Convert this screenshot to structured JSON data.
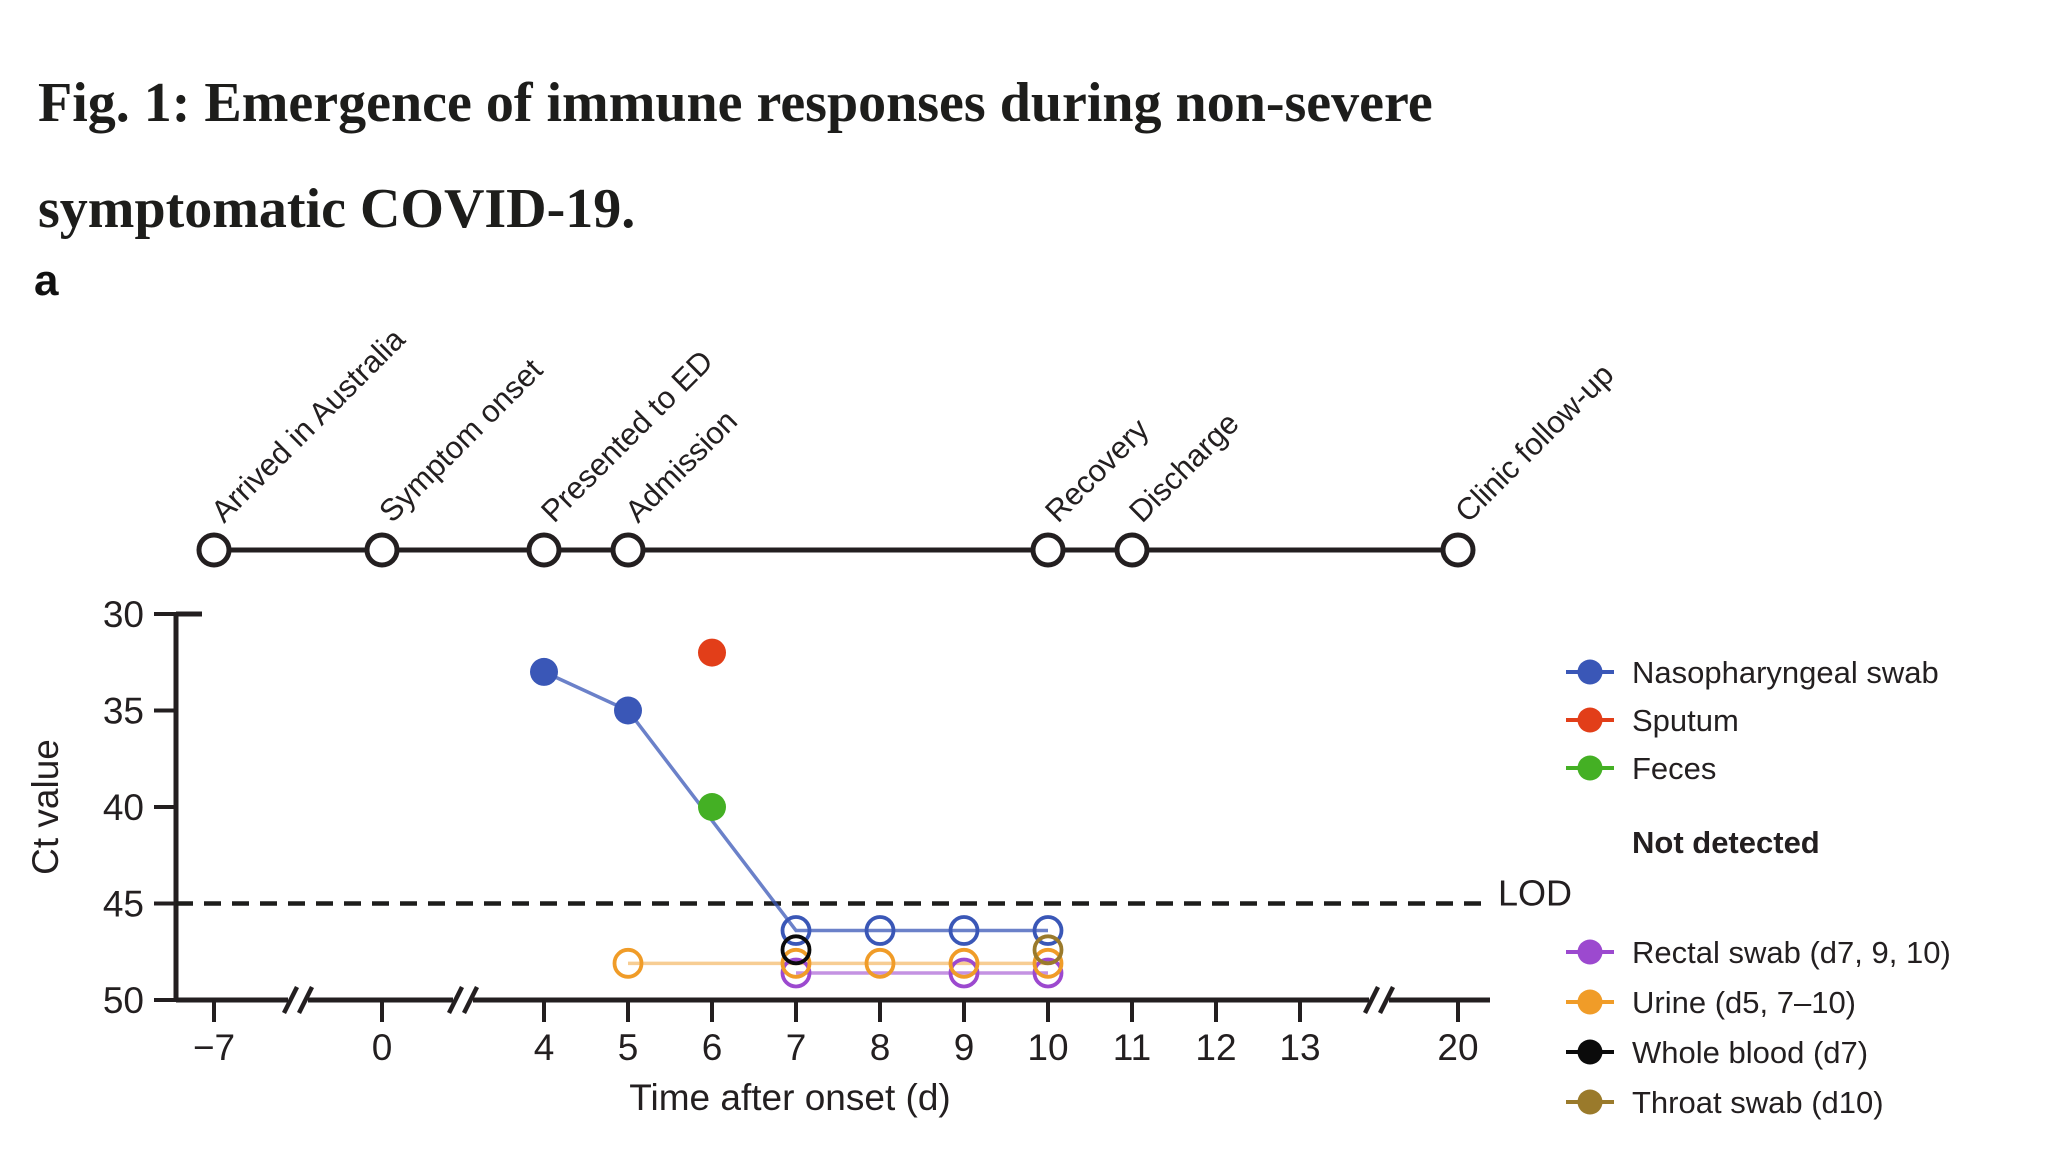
{
  "figure": {
    "title_lines": [
      "Fig. 1: Emergence of immune responses during non-severe",
      "symptomatic COVID-19."
    ],
    "panel_label": "a"
  },
  "timeline": {
    "events": [
      {
        "label": "Arrived in Australia",
        "day": -7
      },
      {
        "label": "Symptom onset",
        "day": 0
      },
      {
        "label": "Presented to ED",
        "day": 4
      },
      {
        "label": "Admission",
        "day": 5
      },
      {
        "label": "Recovery",
        "day": 10
      },
      {
        "label": "Discharge",
        "day": 11
      },
      {
        "label": "Clinic follow-up",
        "day": 20
      }
    ]
  },
  "chart_data": {
    "type": "scatter",
    "xlabel": "Time after onset (d)",
    "ylabel": "Ct value",
    "x_ticks": [
      -7,
      0,
      4,
      5,
      6,
      7,
      8,
      9,
      10,
      11,
      12,
      13,
      20
    ],
    "x_tick_labels": [
      "−7",
      "0",
      "4",
      "5",
      "6",
      "7",
      "8",
      "9",
      "10",
      "11",
      "12",
      "13",
      "20"
    ],
    "x_axis_breaks_between": [
      [
        -7,
        0
      ],
      [
        0,
        4
      ],
      [
        13,
        20
      ]
    ],
    "y_ticks": [
      30,
      35,
      40,
      45,
      50
    ],
    "ylim": [
      30,
      50
    ],
    "y_axis_inverted": true,
    "grid": false,
    "lod": {
      "label": "LOD",
      "ct": 45,
      "style": "dashed"
    },
    "legend_position": "right",
    "not_detected_header": "Not detected",
    "series": [
      {
        "name": "Nasopharyngeal swab",
        "color": "#3a57b7",
        "legend_group": "detected",
        "connect": true,
        "detected": [
          {
            "day": 4,
            "ct": 33
          },
          {
            "day": 5,
            "ct": 35
          }
        ],
        "not_detected": [
          {
            "day": 7,
            "ct": 46.4
          },
          {
            "day": 8,
            "ct": 46.4
          },
          {
            "day": 9,
            "ct": 46.4
          },
          {
            "day": 10,
            "ct": 46.4
          }
        ]
      },
      {
        "name": "Sputum",
        "color": "#e23e19",
        "legend_group": "detected",
        "connect": false,
        "detected": [
          {
            "day": 6,
            "ct": 32
          }
        ],
        "not_detected": []
      },
      {
        "name": "Feces",
        "color": "#44b024",
        "legend_group": "detected",
        "connect": false,
        "detected": [
          {
            "day": 6,
            "ct": 40
          }
        ],
        "not_detected": []
      },
      {
        "name": "Rectal swab (d7, 9, 10)",
        "color": "#9c49cf",
        "legend_group": "not_detected",
        "connect": true,
        "detected": [],
        "not_detected": [
          {
            "day": 7,
            "ct": 48.6
          },
          {
            "day": 9,
            "ct": 48.6
          },
          {
            "day": 10,
            "ct": 48.6
          }
        ]
      },
      {
        "name": "Urine (d5, 7–10)",
        "color": "#f09c28",
        "legend_group": "not_detected",
        "connect": true,
        "detected": [],
        "not_detected": [
          {
            "day": 5,
            "ct": 48.1
          },
          {
            "day": 7,
            "ct": 48.1
          },
          {
            "day": 8,
            "ct": 48.1
          },
          {
            "day": 9,
            "ct": 48.1
          },
          {
            "day": 10,
            "ct": 48.1
          }
        ]
      },
      {
        "name": "Whole blood (d7)",
        "color": "#0b0b0b",
        "legend_group": "not_detected",
        "connect": false,
        "detected": [],
        "not_detected": [
          {
            "day": 7,
            "ct": 47.4
          }
        ]
      },
      {
        "name": "Throat swab (d10)",
        "color": "#9a7a2b",
        "legend_group": "not_detected",
        "connect": false,
        "detected": [],
        "not_detected": [
          {
            "day": 10,
            "ct": 47.4
          }
        ]
      }
    ]
  }
}
